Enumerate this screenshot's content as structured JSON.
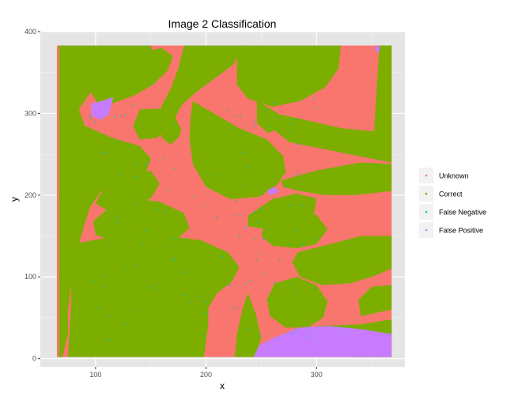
{
  "chart_data": {
    "type": "scatter",
    "title": "Image 2 Classification",
    "xlabel": "x",
    "ylabel": "y",
    "xlim": [
      50,
      380
    ],
    "ylim": [
      -10,
      400
    ],
    "x_ticks": [
      100,
      200,
      300
    ],
    "y_ticks": [
      0,
      100,
      200,
      300,
      400
    ],
    "grid": true,
    "legend_position": "right",
    "series": [
      {
        "name": "Unknown",
        "color": "#f8766d"
      },
      {
        "name": "Correct",
        "color": "#7cae00"
      },
      {
        "name": "False Negative",
        "color": "#00bfc4"
      },
      {
        "name": "False Positive",
        "color": "#c77cff"
      }
    ],
    "image_extent": {
      "x": [
        65,
        368
      ],
      "y": [
        2,
        383
      ]
    },
    "regions": {
      "unknown_background": {
        "x": [
          65,
          368
        ],
        "y": [
          2,
          383
        ]
      },
      "correct": [
        {
          "points": [
            [
              67,
              383
            ],
            [
              150,
              383
            ],
            [
              155,
              360
            ],
            [
              140,
              345
            ],
            [
              115,
              340
            ],
            [
              95,
              325
            ],
            [
              85,
              305
            ],
            [
              90,
              285
            ],
            [
              115,
              270
            ],
            [
              140,
              260
            ],
            [
              150,
              245
            ],
            [
              145,
              225
            ],
            [
              125,
              215
            ],
            [
              105,
              205
            ],
            [
              95,
              185
            ],
            [
              90,
              165
            ],
            [
              85,
              140
            ],
            [
              80,
              115
            ],
            [
              78,
              90
            ],
            [
              75,
              60
            ],
            [
              75,
              30
            ],
            [
              70,
              2
            ],
            [
              67,
              2
            ]
          ]
        },
        {
          "points": [
            [
              180,
              383
            ],
            [
              235,
              383
            ],
            [
              225,
              360
            ],
            [
              205,
              340
            ],
            [
              190,
              325
            ],
            [
              178,
              310
            ],
            [
              172,
              295
            ],
            [
              178,
              280
            ],
            [
              175,
              270
            ],
            [
              168,
              262
            ],
            [
              160,
              270
            ],
            [
              155,
              290
            ],
            [
              160,
              310
            ],
            [
              168,
              330
            ],
            [
              175,
              355
            ]
          ]
        },
        {
          "points": [
            [
              95,
              350
            ],
            [
              130,
              372
            ],
            [
              160,
              380
            ],
            [
              170,
              370
            ],
            [
              165,
              352
            ],
            [
              152,
              335
            ],
            [
              135,
              322
            ],
            [
              115,
              312
            ],
            [
              102,
              312
            ],
            [
              95,
              328
            ]
          ]
        },
        {
          "points": [
            [
              230,
              383
            ],
            [
              322,
              383
            ],
            [
              320,
              355
            ],
            [
              308,
              332
            ],
            [
              285,
              315
            ],
            [
              260,
              308
            ],
            [
              238,
              318
            ],
            [
              228,
              335
            ],
            [
              228,
              360
            ]
          ]
        },
        {
          "points": [
            [
              188,
              315
            ],
            [
              230,
              282
            ],
            [
              255,
              268
            ],
            [
              270,
              248
            ],
            [
              272,
              228
            ],
            [
              264,
              212
            ],
            [
              248,
              198
            ],
            [
              222,
              195
            ],
            [
              200,
              210
            ],
            [
              188,
              238
            ],
            [
              185,
              270
            ],
            [
              186,
              295
            ]
          ]
        },
        {
          "points": [
            [
              140,
              305
            ],
            [
              162,
              306
            ],
            [
              168,
              290
            ],
            [
              156,
              270
            ],
            [
              140,
              268
            ],
            [
              134,
              284
            ]
          ]
        },
        {
          "points": [
            [
              246,
              316
            ],
            [
              265,
              300
            ],
            [
              268,
              282
            ],
            [
              256,
              276
            ],
            [
              246,
              288
            ]
          ]
        },
        {
          "points": [
            [
              357,
              383
            ],
            [
              368,
              383
            ],
            [
              368,
              240
            ],
            [
              330,
              250
            ],
            [
              300,
              258
            ],
            [
              275,
              265
            ],
            [
              258,
              284
            ],
            [
              262,
              300
            ],
            [
              290,
              292
            ],
            [
              322,
              282
            ],
            [
              352,
              278
            ]
          ]
        },
        {
          "points": [
            [
              318,
              278
            ],
            [
              340,
              275
            ],
            [
              352,
              262
            ],
            [
              348,
              252
            ],
            [
              330,
              250
            ],
            [
              318,
              260
            ]
          ]
        },
        {
          "points": [
            [
              238,
              175
            ],
            [
              260,
              195
            ],
            [
              282,
              202
            ],
            [
              300,
              196
            ],
            [
              298,
              178
            ],
            [
              278,
              163
            ],
            [
              255,
              158
            ],
            [
              238,
              162
            ]
          ]
        },
        {
          "points": [
            [
              268,
              218
            ],
            [
              300,
              230
            ],
            [
              340,
              240
            ],
            [
              368,
              238
            ],
            [
              368,
              205
            ],
            [
              335,
              200
            ],
            [
              308,
              200
            ],
            [
              285,
              205
            ],
            [
              270,
              210
            ]
          ]
        },
        {
          "points": [
            [
              108,
              210
            ],
            [
              130,
              222
            ],
            [
              150,
              230
            ],
            [
              158,
              214
            ],
            [
              150,
              196
            ],
            [
              130,
              185
            ],
            [
              112,
              180
            ],
            [
              100,
              190
            ]
          ]
        },
        {
          "points": [
            [
              108,
              180
            ],
            [
              138,
              195
            ],
            [
              158,
              192
            ],
            [
              180,
              178
            ],
            [
              185,
              160
            ],
            [
              175,
              148
            ],
            [
              150,
              140
            ],
            [
              120,
              140
            ],
            [
              100,
              152
            ],
            [
              98,
              168
            ]
          ]
        },
        {
          "points": [
            [
              78,
              140
            ],
            [
              120,
              150
            ],
            [
              165,
              150
            ],
            [
              195,
              145
            ],
            [
              220,
              130
            ],
            [
              230,
              112
            ],
            [
              224,
              95
            ],
            [
              210,
              80
            ],
            [
              202,
              62
            ],
            [
              202,
              40
            ],
            [
              198,
              2
            ],
            [
              75,
              2
            ],
            [
              78,
              70
            ]
          ]
        },
        {
          "points": [
            [
              255,
              175
            ],
            [
              278,
              182
            ],
            [
              300,
              176
            ],
            [
              310,
              158
            ],
            [
              300,
              140
            ],
            [
              282,
              135
            ],
            [
              260,
              138
            ],
            [
              250,
              150
            ]
          ]
        },
        {
          "points": [
            [
              283,
              130
            ],
            [
              312,
              140
            ],
            [
              340,
              150
            ],
            [
              368,
              150
            ],
            [
              368,
              110
            ],
            [
              350,
              100
            ],
            [
              330,
              92
            ],
            [
              305,
              90
            ],
            [
              285,
              100
            ],
            [
              278,
              118
            ]
          ]
        },
        {
          "points": [
            [
              262,
              92
            ],
            [
              282,
              100
            ],
            [
              300,
              90
            ],
            [
              310,
              70
            ],
            [
              306,
              50
            ],
            [
              292,
              38
            ],
            [
              272,
              38
            ],
            [
              258,
              52
            ],
            [
              255,
              72
            ]
          ]
        },
        {
          "points": [
            [
              340,
              52
            ],
            [
              368,
              60
            ],
            [
              368,
              90
            ],
            [
              350,
              88
            ],
            [
              338,
              72
            ]
          ]
        },
        {
          "points": [
            [
              226,
              2
            ],
            [
              244,
              2
            ],
            [
              250,
              25
            ],
            [
              245,
              55
            ],
            [
              238,
              80
            ],
            [
              233,
              60
            ],
            [
              228,
              30
            ]
          ]
        },
        {
          "points": [
            [
              300,
              40
            ],
            [
              340,
              42
            ],
            [
              368,
              48
            ],
            [
              368,
              2
            ],
            [
              330,
              2
            ],
            [
              300,
              10
            ]
          ]
        }
      ],
      "false_positive": [
        {
          "points": [
            [
              96,
              312
            ],
            [
              108,
              316
            ],
            [
              116,
              320
            ],
            [
              112,
              298
            ],
            [
              104,
              292
            ],
            [
              96,
              298
            ]
          ]
        },
        {
          "points": [
            [
              243,
              2
            ],
            [
              368,
              2
            ],
            [
              368,
              30
            ],
            [
              340,
              36
            ],
            [
              310,
              40
            ],
            [
              285,
              38
            ],
            [
              262,
              26
            ],
            [
              248,
              16
            ]
          ]
        },
        {
          "points": [
            [
              255,
              206
            ],
            [
              262,
              210
            ],
            [
              266,
              204
            ],
            [
              258,
              200
            ]
          ]
        },
        {
          "points": [
            [
              353,
              382
            ],
            [
              357,
              382
            ],
            [
              357,
              376
            ],
            [
              353,
              376
            ]
          ]
        }
      ],
      "false_negative_scatter": {
        "x_range": [
          95,
          300
        ],
        "y_range": [
          20,
          320
        ],
        "count": 120
      }
    }
  }
}
